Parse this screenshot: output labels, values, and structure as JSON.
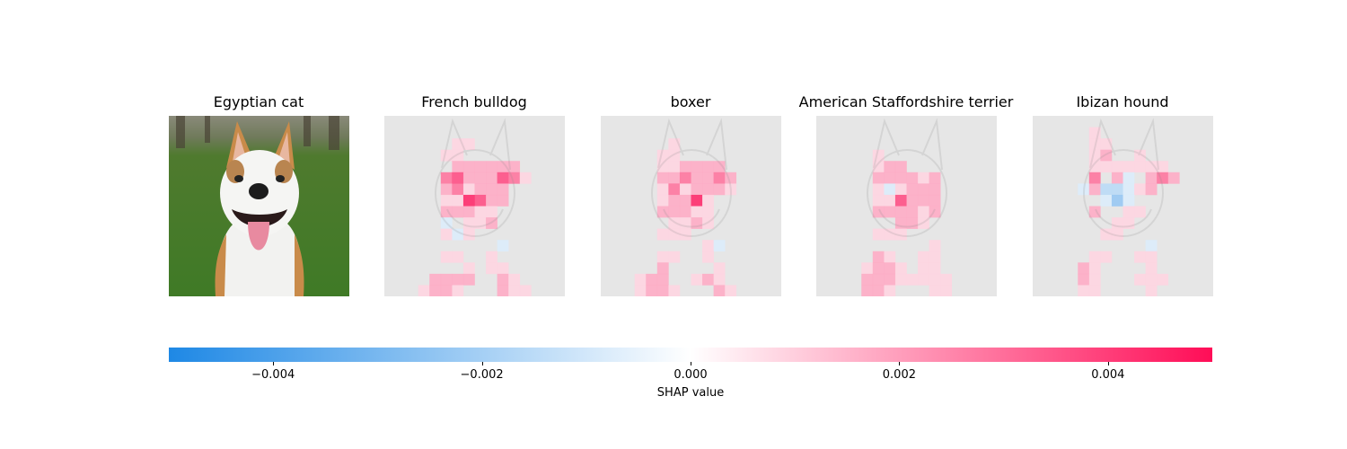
{
  "chart_data": {
    "type": "heatmap",
    "original_image_title": "Egyptian cat",
    "class_titles": [
      "French bulldog",
      "boxer",
      "American Staffordshire terrier",
      "Ibizan hound"
    ],
    "grid_size": 16,
    "colorbar": {
      "label": "SHAP value",
      "vmin": -0.005,
      "vmax": 0.005,
      "ticks": [
        -0.004,
        -0.002,
        0.0,
        0.002,
        0.004
      ],
      "tick_labels": [
        "−0.004",
        "−0.002",
        "0.000",
        "0.002",
        "0.004"
      ],
      "negative_color": "#1e88e5",
      "positive_color": "#ff0d57"
    },
    "shap_maps": [
      {
        "class": "French bulldog",
        "rows": [
          "0000000000000000",
          "0000000000000000",
          "0000001100000000",
          "0000011000000000",
          "0000002222220000",
          "0000034222431000",
          "0000023122200000",
          "0000011542200000",
          "0000022211000000",
          "00000i0112000000",
          "000001i100000000",
          "0000000000i00000",
          "0000011001000000",
          "0000000101100000",
          "0000222200210000",
          "0001221000211000"
        ]
      },
      {
        "class": "boxer",
        "rows": [
          "0000000000000000",
          "0000000000000000",
          "0000001000000000",
          "0000011000000000",
          "0000011222200000",
          "0000022322320000",
          "0000013122210000",
          "0000012251000000",
          "0000022211000000",
          "0000001121000000",
          "0000011100000000",
          "0000000001i00000",
          "0000011001000000",
          "0000020000100000",
          "0001220012100000",
          "0001221000210000"
        ]
      },
      {
        "class": "American Staffordshire terrier",
        "rows": [
          "0000000000000000",
          "0000000000000000",
          "0000000000000000",
          "0000010000000000",
          "0000012200000000",
          "0000022221200000",
          "000001i122200000",
          "0000011422200000",
          "0000022221200000",
          "0000000221000000",
          "0000011100000000",
          "0000000000100000",
          "0000021001100000",
          "0000122101100000",
          "0000222111110000",
          "0000221000110000"
        ]
      },
      {
        "class": "Ibizan hound",
        "rows": [
          "0000000000000000",
          "0000010000000000",
          "0000011000000000",
          "0000012001000000",
          "0000011111110000",
          "00000302i0232000",
          "0000i2jji1200000",
          "000000iki0000000",
          "0000020011000000",
          "0000000110000000",
          "0000001100000000",
          "0000000000i00000",
          "0000011001100000",
          "0000210000100000",
          "0000210001110000",
          "0000110000100000"
        ]
      }
    ]
  }
}
